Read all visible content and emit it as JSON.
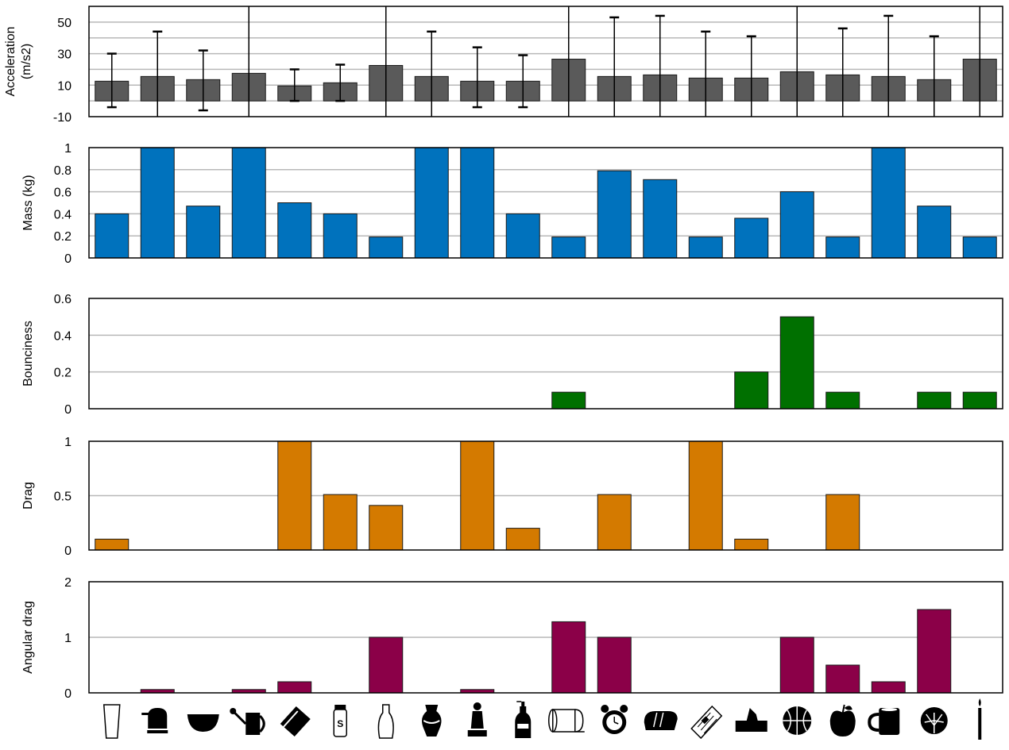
{
  "chart_data": [
    {
      "type": "bar",
      "ylabel": "Acceleration (m/s2)",
      "ylabel_lines": [
        "Acceleration",
        "(m/s2)"
      ],
      "ylim": [
        -10,
        60
      ],
      "yticks": [
        -10,
        10,
        30,
        50
      ],
      "grid": true,
      "color": "#5a5a5a",
      "values": [
        12.5,
        15.5,
        13.5,
        17.5,
        9.5,
        11.5,
        22.5,
        15.5,
        12.5,
        12.5,
        26.5,
        15.5,
        16.5,
        14.5,
        14.5,
        18.5,
        16.5,
        15.5,
        13.5,
        26.5
      ],
      "error_low": [
        -4,
        null,
        -6,
        null,
        0,
        0,
        null,
        null,
        -4,
        -4,
        null,
        null,
        null,
        null,
        null,
        null,
        null,
        null,
        null,
        null
      ],
      "error_high": [
        30,
        44,
        32,
        60,
        20,
        23,
        60,
        44,
        34,
        29,
        60,
        53,
        54,
        44,
        41,
        60,
        46,
        54,
        41,
        60
      ]
    },
    {
      "type": "bar",
      "ylabel": "Mass (kg)",
      "ylim": [
        0,
        1
      ],
      "yticks": [
        0,
        0.2,
        0.4,
        0.6,
        0.8,
        1
      ],
      "ytick_labels": [
        "0",
        "0.2",
        "0.4",
        "0.6",
        "0.8",
        "1"
      ],
      "grid": true,
      "color": "#0072bd",
      "values": [
        0.4,
        1,
        0.47,
        1,
        0.5,
        0.4,
        0.19,
        1,
        1,
        0.4,
        0.19,
        0.79,
        0.71,
        0.19,
        0.36,
        0.6,
        0.19,
        1,
        0.47,
        0.19
      ]
    },
    {
      "type": "bar",
      "ylabel": "Bounciness",
      "ylim": [
        0,
        0.6
      ],
      "yticks": [
        0,
        0.2,
        0.4,
        0.6
      ],
      "ytick_labels": [
        "0",
        "0.2",
        "0.4",
        "0.6"
      ],
      "grid": true,
      "color": "#007000",
      "values": [
        0,
        0,
        0,
        0,
        0,
        0,
        0,
        0,
        0,
        0,
        0.09,
        0,
        0,
        0,
        0.2,
        0.5,
        0.09,
        0,
        0.09,
        0.09
      ]
    },
    {
      "type": "bar",
      "ylabel": "Drag",
      "ylim": [
        0,
        1
      ],
      "yticks": [
        0,
        0.5,
        1
      ],
      "ytick_labels": [
        "0",
        "0.5",
        "1"
      ],
      "grid": true,
      "color": "#d47a00",
      "values": [
        0.1,
        0,
        0,
        0,
        1,
        0.51,
        0.41,
        0,
        1,
        0.2,
        0,
        0.51,
        0,
        1,
        0.1,
        0,
        0.51,
        0,
        0,
        0
      ]
    },
    {
      "type": "bar",
      "ylabel": "Angular drag",
      "ylim": [
        0,
        2
      ],
      "yticks": [
        0,
        1,
        2
      ],
      "ytick_labels": [
        "0",
        "1",
        "2"
      ],
      "grid": true,
      "color": "#8b0048",
      "values": [
        0,
        0.06,
        0,
        0.06,
        0.2,
        0,
        1,
        0,
        0.06,
        0,
        1.28,
        1,
        0,
        0,
        0,
        1,
        0.5,
        0.2,
        1.5,
        0
      ]
    }
  ],
  "x_icons": [
    "cup-icon",
    "stapler-icon",
    "bowl-icon",
    "watering-can-icon",
    "book-icon",
    "salt-shaker-icon",
    "vase-icon",
    "ornate-vase-icon",
    "statuette-icon",
    "soap-bottle-icon",
    "toilet-paper-icon",
    "alarm-clock-icon",
    "bread-icon",
    "newspaper-icon",
    "tissue-box-icon",
    "basketball-icon",
    "apple-icon",
    "mug-icon",
    "cabbage-icon",
    "candle-icon"
  ],
  "salt_label": "S"
}
